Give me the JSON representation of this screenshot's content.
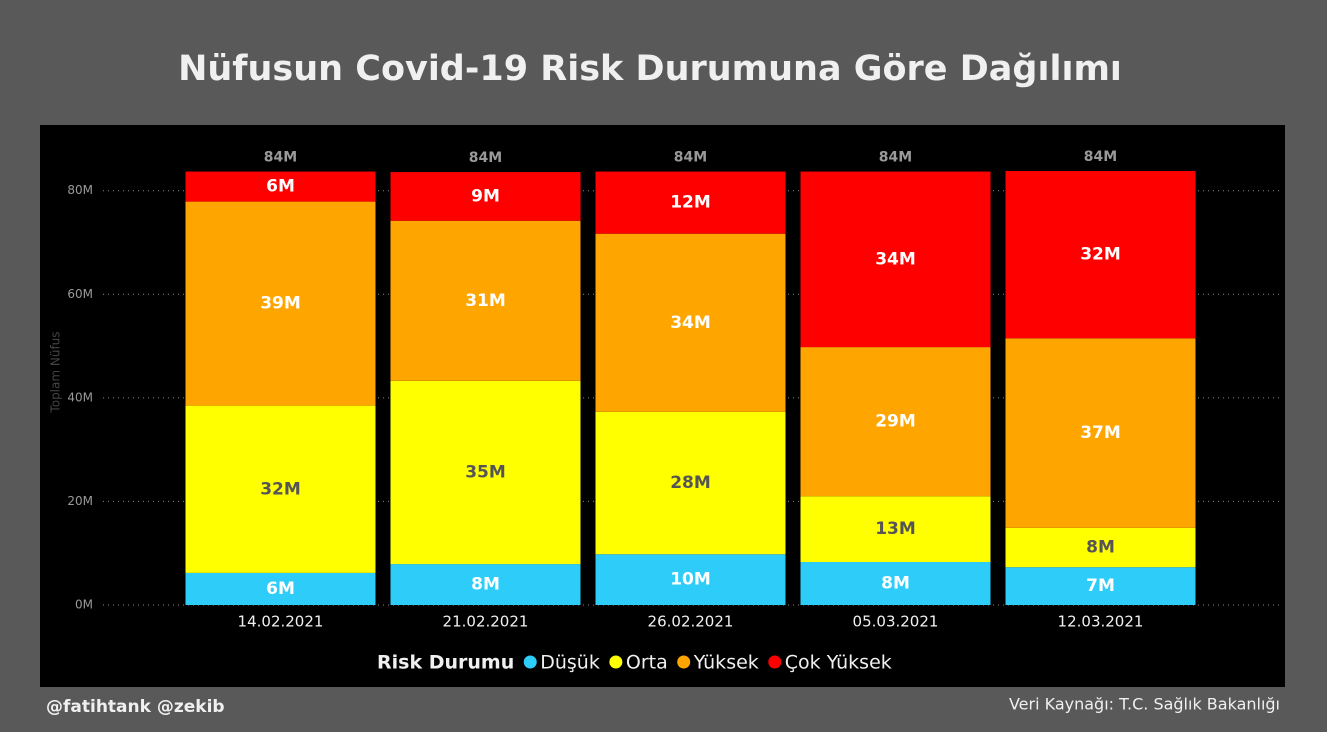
{
  "chart_data": {
    "type": "stacked_bar",
    "title": "Nüfusun Covid-19 Risk Durumuna Göre Dağılımı",
    "y_label": "Toplam Nüfus",
    "legend_title": "Risk Durumu",
    "categories": [
      "14.02.2021",
      "21.02.2021",
      "26.02.2021",
      "05.03.2021",
      "12.03.2021"
    ],
    "series": [
      {
        "name": "Düşük",
        "color": "#2ecdf9",
        "label_color": "#ffffff",
        "values": [
          6200000,
          7900000,
          9800000,
          8300000,
          7300000
        ],
        "value_labels": [
          "6M",
          "8M",
          "10M",
          "8M",
          "7M"
        ]
      },
      {
        "name": "Orta",
        "color": "#ffff00",
        "label_color": "#555555",
        "values": [
          32300000,
          35400000,
          27500000,
          12700000,
          7600000
        ],
        "value_labels": [
          "32M",
          "35M",
          "28M",
          "13M",
          "8M"
        ]
      },
      {
        "name": "Yüksek",
        "color": "#ffa500",
        "label_color": "#ffffff",
        "values": [
          39400000,
          30900000,
          34400000,
          28800000,
          36600000
        ],
        "value_labels": [
          "39M",
          "31M",
          "34M",
          "29M",
          "37M"
        ]
      },
      {
        "name": "Çok Yüksek",
        "color": "#ff0000",
        "label_color": "#ffffff",
        "values": [
          5800000,
          9400000,
          12000000,
          33900000,
          32300000
        ],
        "value_labels": [
          "6M",
          "9M",
          "12M",
          "34M",
          "32M"
        ]
      }
    ],
    "totals": [
      83700000,
      83600000,
      83700000,
      83700000,
      83800000
    ],
    "total_labels": [
      "84M",
      "84M",
      "84M",
      "84M",
      "84M"
    ],
    "ylim": [
      0,
      84000000
    ],
    "yticks": [
      {
        "value": 0,
        "label": "0M"
      },
      {
        "value": 20000000,
        "label": "20M"
      },
      {
        "value": 40000000,
        "label": "40M"
      },
      {
        "value": 60000000,
        "label": "60M"
      },
      {
        "value": 80000000,
        "label": "80M"
      }
    ],
    "grid": true
  },
  "footer": {
    "left": "@fatihtank @zekib",
    "right": "Veri Kaynağı: T.C. Sağlık Bakanlığı"
  }
}
